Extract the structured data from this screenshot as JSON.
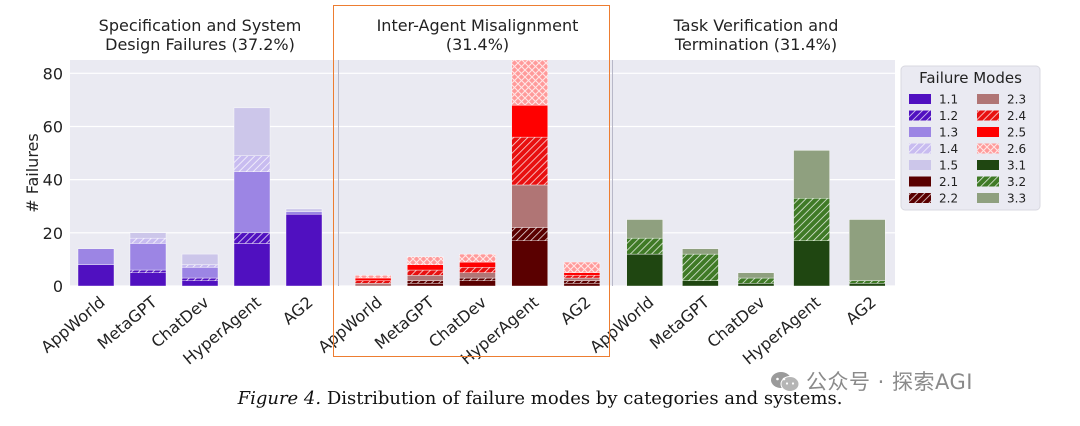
{
  "chart_data": {
    "type": "bar",
    "stacked": true,
    "ylabel": "# Failures",
    "ylim": [
      0,
      85
    ],
    "yticks": [
      0,
      20,
      40,
      60,
      80
    ],
    "grid": true,
    "legend": {
      "title": "Failure Modes",
      "placement": "right",
      "entries": [
        "1.1",
        "2.3",
        "1.2",
        "2.4",
        "1.3",
        "2.5",
        "1.4",
        "2.6",
        "1.5",
        "3.1",
        "2.1",
        "3.2",
        "2.2",
        "3.3"
      ]
    },
    "categories": [
      "AppWorld",
      "MetaGPT",
      "ChatDev",
      "HyperAgent",
      "AG2"
    ],
    "colors": {
      "1.1": "#5010c0",
      "1.2": "#5010c0",
      "1.3": "#9c85e4",
      "1.4": "#c8bcf0",
      "1.5": "#ccc6ea",
      "2.1": "#5a0000",
      "2.2": "#5a0000",
      "2.3": "#b07575",
      "2.4": "#e81010",
      "2.5": "#ff0000",
      "2.6": "#ff9a9a",
      "3.1": "#1f4611",
      "3.2": "#3f7a26",
      "3.3": "#8fa07f"
    },
    "hatched": [
      "1.2",
      "1.4",
      "2.2",
      "2.4",
      "2.6",
      "3.2"
    ],
    "panels": [
      {
        "title": "Specification and System\nDesign Failures (37.2%)",
        "series": [
          {
            "name": "1.1",
            "values": [
              8,
              5,
              2,
              16,
              27
            ]
          },
          {
            "name": "1.2",
            "values": [
              0,
              1,
              1,
              4,
              0
            ]
          },
          {
            "name": "1.3",
            "values": [
              6,
              10,
              4,
              23,
              1
            ]
          },
          {
            "name": "1.4",
            "values": [
              0,
              2,
              1,
              6,
              0
            ]
          },
          {
            "name": "1.5",
            "values": [
              0,
              2,
              4,
              18,
              1
            ]
          }
        ]
      },
      {
        "title": "Inter-Agent Misalignment\n(31.4%)",
        "series": [
          {
            "name": "2.1",
            "values": [
              0,
              1,
              2,
              17,
              1
            ]
          },
          {
            "name": "2.2",
            "values": [
              0,
              1,
              1,
              5,
              1
            ]
          },
          {
            "name": "2.3",
            "values": [
              1,
              2,
              2,
              16,
              1
            ]
          },
          {
            "name": "2.4",
            "values": [
              1,
              2,
              2,
              18,
              1
            ]
          },
          {
            "name": "2.5",
            "values": [
              1,
              2,
              2,
              12,
              1
            ]
          },
          {
            "name": "2.6",
            "values": [
              1,
              3,
              3,
              18,
              4
            ]
          }
        ]
      },
      {
        "title": "Task Verification and\nTermination (31.4%)",
        "series": [
          {
            "name": "3.1",
            "values": [
              12,
              2,
              1,
              17,
              1
            ]
          },
          {
            "name": "3.2",
            "values": [
              6,
              10,
              2,
              16,
              1
            ]
          },
          {
            "name": "3.3",
            "values": [
              7,
              2,
              2,
              18,
              23
            ]
          }
        ]
      }
    ]
  },
  "caption": {
    "figure_label": "Figure 4.",
    "text": "Distribution of failure modes by categories and systems."
  },
  "watermark": {
    "text": "公众号 · 探索AGI",
    "icon": "wechat-icon"
  }
}
